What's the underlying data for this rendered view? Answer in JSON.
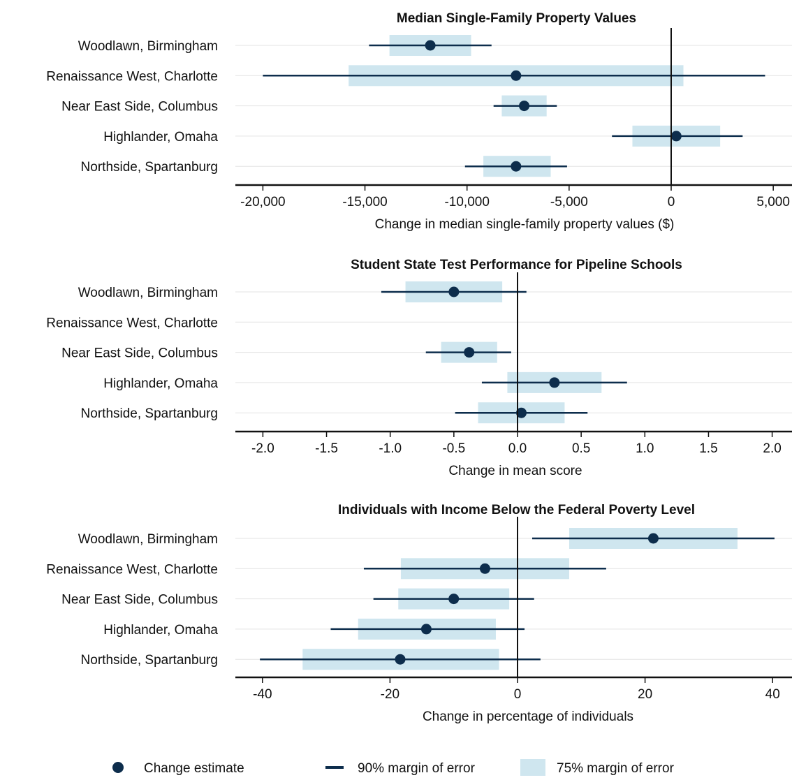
{
  "colors": {
    "estimate": "#0d2d4c",
    "ci90": "#0d2d4c",
    "ci75": "#cfe6ef",
    "gridline": "#e3e3e3",
    "axis": "#111111"
  },
  "legend": {
    "estimate_label": "Change estimate",
    "ci90_label": "90% margin of error",
    "ci75_label": "75% margin of error"
  },
  "chart_data": [
    {
      "type": "scatter",
      "title": "Median Single-Family Property Values",
      "xlabel": "Change in median single-family property values ($)",
      "xlim": [
        -22000,
        5000
      ],
      "xticks": [
        -20000,
        -15000,
        -10000,
        -5000,
        0,
        5000
      ],
      "xtick_labels": [
        "-20,000",
        "-15,000",
        "-10,000",
        "-5,000",
        "0",
        "5,000"
      ],
      "categories": [
        "Woodlawn, Birmingham",
        "Renaissance West, Charlotte",
        "Near East Side, Columbus",
        "Highlander, Omaha",
        "Northside, Spartanburg"
      ],
      "estimate": [
        -11800,
        -7600,
        -7200,
        250,
        -7600
      ],
      "ci90": [
        [
          -14800,
          -8800
        ],
        [
          -20000,
          4600
        ],
        [
          -8700,
          -5600
        ],
        [
          -2900,
          3500
        ],
        [
          -10100,
          -5100
        ]
      ],
      "ci75": [
        [
          -13800,
          -9800
        ],
        [
          -15800,
          600
        ],
        [
          -8300,
          -6100
        ],
        [
          -1900,
          2400
        ],
        [
          -9200,
          -5900
        ]
      ]
    },
    {
      "type": "scatter",
      "title": "Student State Test Performance for Pipeline Schools",
      "xlabel": "Change in mean score",
      "xlim": [
        -2.2,
        2.15
      ],
      "xticks": [
        -2.0,
        -1.5,
        -1.0,
        -0.5,
        0.0,
        0.5,
        1.0,
        1.5,
        2.0
      ],
      "xtick_labels": [
        "-2.0",
        "-1.5",
        "-1.0",
        "-0.5",
        "0.0",
        "0.5",
        "1.0",
        "1.5",
        "2.0"
      ],
      "categories": [
        "Woodlawn, Birmingham",
        "Renaissance West, Charlotte",
        "Near East Side, Columbus",
        "Highlander, Omaha",
        "Northside, Spartanburg"
      ],
      "estimate": [
        -0.5,
        null,
        -0.38,
        0.29,
        0.03
      ],
      "ci90": [
        [
          -1.07,
          0.07
        ],
        null,
        [
          -0.72,
          -0.05
        ],
        [
          -0.28,
          0.86
        ],
        [
          -0.49,
          0.55
        ]
      ],
      "ci75": [
        [
          -0.88,
          -0.12
        ],
        null,
        [
          -0.6,
          -0.16
        ],
        [
          -0.08,
          0.66
        ],
        [
          -0.31,
          0.37
        ]
      ]
    },
    {
      "type": "scatter",
      "title": "Individuals with Income Below the Federal Poverty Level",
      "xlabel": "Change in percentage of individuals",
      "xlim": [
        -44,
        43
      ],
      "xticks": [
        -40,
        -20,
        0,
        20,
        40
      ],
      "xtick_labels": [
        "-40",
        "-20",
        "0",
        "20",
        "40"
      ],
      "categories": [
        "Woodlawn, Birmingham",
        "Renaissance West, Charlotte",
        "Near East Side, Columbus",
        "Highlander, Omaha",
        "Northside, Spartanburg"
      ],
      "estimate": [
        21.3,
        -5.1,
        -10,
        -14.3,
        -18.4
      ],
      "ci90": [
        [
          2.3,
          40.3
        ],
        [
          -24.1,
          13.9
        ],
        [
          -22.6,
          2.6
        ],
        [
          -29.3,
          1.1
        ],
        [
          -40.4,
          3.6
        ]
      ],
      "ci75": [
        [
          8.1,
          34.5
        ],
        [
          -18.3,
          8.1
        ],
        [
          -18.7,
          -1.3
        ],
        [
          -25,
          -3.4
        ],
        [
          -33.7,
          -2.9
        ]
      ]
    }
  ]
}
